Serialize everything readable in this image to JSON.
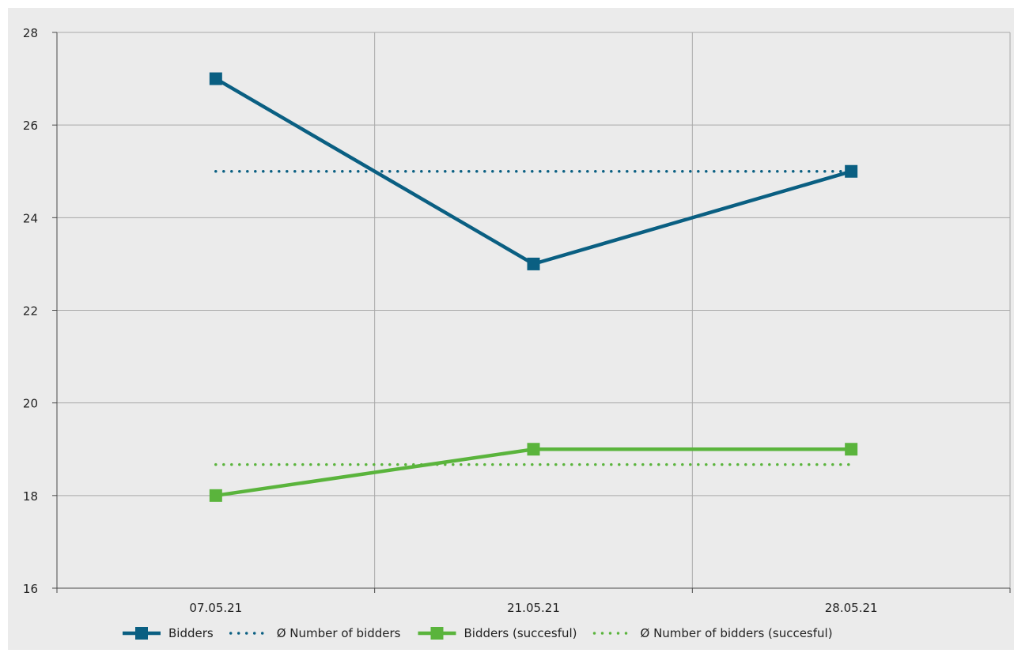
{
  "chart_data": {
    "type": "line",
    "categories": [
      "07.05.21",
      "21.05.21",
      "28.05.21"
    ],
    "ylim": [
      16,
      28
    ],
    "yticks": [
      16,
      18,
      20,
      22,
      24,
      26,
      28
    ],
    "grid": true,
    "legend_position": "bottom",
    "series": [
      {
        "name": "Bidders",
        "values": [
          27,
          23,
          25
        ],
        "color": "#0a5f82",
        "style": "solid",
        "marker": "square"
      },
      {
        "name": "Ø Number of bidders",
        "values": [
          25,
          25,
          25
        ],
        "color": "#0a5f82",
        "style": "dotted",
        "marker": "none"
      },
      {
        "name": "Bidders (succesful)",
        "values": [
          18,
          19,
          19
        ],
        "color": "#5ab43c",
        "style": "solid",
        "marker": "square"
      },
      {
        "name": "Ø Number of bidders (succesful)",
        "values": [
          18.67,
          18.67,
          18.67
        ],
        "color": "#5ab43c",
        "style": "dotted",
        "marker": "none"
      }
    ]
  },
  "colors": {
    "background": "#ebebeb",
    "grid": "#a9a9a9",
    "axis": "#4a4a4a"
  }
}
